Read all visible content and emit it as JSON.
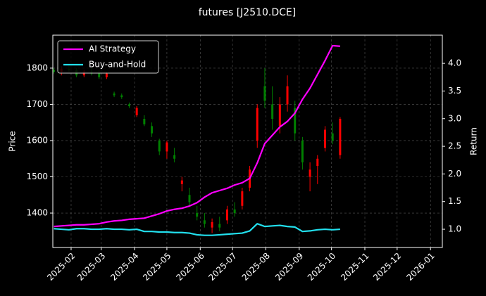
{
  "chart_data": {
    "type": "candlestick",
    "title": "futures [J2510.DCE]",
    "ylabel": "Price",
    "y2label": "Return",
    "x": [
      "2025-01-16",
      "2025-01-23",
      "2025-01-30",
      "2025-02-06",
      "2025-02-13",
      "2025-02-20",
      "2025-02-27",
      "2025-03-06",
      "2025-03-13",
      "2025-03-20",
      "2025-03-27",
      "2025-04-03",
      "2025-04-10",
      "2025-04-17",
      "2025-04-24",
      "2025-05-01",
      "2025-05-08",
      "2025-05-15",
      "2025-05-22",
      "2025-05-29",
      "2025-06-05",
      "2025-06-12",
      "2025-06-19",
      "2025-06-26",
      "2025-07-03",
      "2025-07-10",
      "2025-07-17",
      "2025-07-24",
      "2025-07-31",
      "2025-08-07",
      "2025-08-14",
      "2025-08-21",
      "2025-08-28",
      "2025-09-04",
      "2025-09-11",
      "2025-09-18",
      "2025-09-25",
      "2025-10-02",
      "2025-10-09"
    ],
    "open": [
      1795,
      1790,
      1798,
      1795,
      1780,
      1790,
      1785,
      1775,
      1730,
      1725,
      1700,
      1670,
      1660,
      1640,
      1600,
      1570,
      1560,
      1480,
      1450,
      1400,
      1380,
      1360,
      1370,
      1380,
      1410,
      1420,
      1470,
      1600,
      1750,
      1700,
      1640,
      1700,
      1690,
      1600,
      1500,
      1530,
      1580,
      1620,
      1560
    ],
    "high": [
      1800,
      1805,
      1810,
      1800,
      1795,
      1800,
      1795,
      1790,
      1735,
      1730,
      1705,
      1695,
      1670,
      1650,
      1605,
      1600,
      1580,
      1500,
      1470,
      1420,
      1400,
      1385,
      1390,
      1420,
      1430,
      1470,
      1530,
      1700,
      1800,
      1750,
      1720,
      1780,
      1710,
      1610,
      1540,
      1560,
      1640,
      1650,
      1665
    ],
    "low": [
      1785,
      1780,
      1790,
      1775,
      1775,
      1780,
      1770,
      1770,
      1720,
      1715,
      1690,
      1665,
      1640,
      1610,
      1560,
      1550,
      1540,
      1460,
      1420,
      1380,
      1360,
      1345,
      1350,
      1370,
      1390,
      1410,
      1460,
      1580,
      1690,
      1630,
      1620,
      1680,
      1600,
      1520,
      1460,
      1480,
      1570,
      1590,
      1550
    ],
    "close": [
      1790,
      1798,
      1795,
      1780,
      1790,
      1785,
      1775,
      1785,
      1725,
      1720,
      1695,
      1690,
      1645,
      1620,
      1570,
      1595,
      1550,
      1490,
      1430,
      1390,
      1370,
      1375,
      1360,
      1410,
      1400,
      1460,
      1520,
      1690,
      1710,
      1660,
      1700,
      1750,
      1620,
      1540,
      1520,
      1550,
      1630,
      1600,
      1660
    ],
    "up_color": "#ff0000",
    "down_color": "#008000",
    "series": [
      {
        "name": "AI Strategy",
        "color": "#ff00ff",
        "axis": "y2",
        "values": [
          1.05,
          1.06,
          1.07,
          1.08,
          1.08,
          1.09,
          1.1,
          1.13,
          1.15,
          1.16,
          1.18,
          1.19,
          1.2,
          1.24,
          1.28,
          1.33,
          1.36,
          1.38,
          1.42,
          1.48,
          1.58,
          1.66,
          1.7,
          1.74,
          1.8,
          1.84,
          1.92,
          2.2,
          2.55,
          2.7,
          2.85,
          2.95,
          3.1,
          3.35,
          3.55,
          3.8,
          4.05,
          4.32,
          4.31
        ]
      },
      {
        "name": "Buy-and-Hold",
        "color": "#22e0ee",
        "axis": "y2",
        "values": [
          1.01,
          1.0,
          0.99,
          1.01,
          1.01,
          1.0,
          1.0,
          1.01,
          1.0,
          1.0,
          0.99,
          1.0,
          0.96,
          0.96,
          0.95,
          0.95,
          0.94,
          0.94,
          0.93,
          0.9,
          0.89,
          0.89,
          0.9,
          0.91,
          0.92,
          0.93,
          0.97,
          1.1,
          1.05,
          1.06,
          1.07,
          1.05,
          1.04,
          0.96,
          0.97,
          0.99,
          1.0,
          0.99,
          1.0
        ]
      }
    ],
    "xlim": [
      "2025-01-15",
      "2026-01-12"
    ],
    "xticks": [
      {
        "value": "2025-02-01",
        "label": "2025-02"
      },
      {
        "value": "2025-03-01",
        "label": "2025-03"
      },
      {
        "value": "2025-04-01",
        "label": "2025-04"
      },
      {
        "value": "2025-05-01",
        "label": "2025-05"
      },
      {
        "value": "2025-06-01",
        "label": "2025-06"
      },
      {
        "value": "2025-07-01",
        "label": "2025-07"
      },
      {
        "value": "2025-08-01",
        "label": "2025-08"
      },
      {
        "value": "2025-09-01",
        "label": "2025-09"
      },
      {
        "value": "2025-10-01",
        "label": "2025-10"
      },
      {
        "value": "2025-11-01",
        "label": "2025-11"
      },
      {
        "value": "2025-12-01",
        "label": "2025-12"
      },
      {
        "value": "2026-01-01",
        "label": "2026-01"
      }
    ],
    "ylim": [
      1305,
      1891
    ],
    "yticks": [
      1400,
      1500,
      1600,
      1700,
      1800
    ],
    "y2lim": [
      0.67,
      4.51
    ],
    "y2ticks": [
      {
        "value": 1,
        "label": "1.0"
      },
      {
        "value": 1.5,
        "label": "1.5"
      },
      {
        "value": 2,
        "label": "2.0"
      },
      {
        "value": 2.5,
        "label": "2.5"
      },
      {
        "value": 3,
        "label": "3.0"
      },
      {
        "value": 3.5,
        "label": "3.5"
      },
      {
        "value": 4,
        "label": "4.0"
      }
    ],
    "grid": true,
    "legend": "upper left"
  }
}
